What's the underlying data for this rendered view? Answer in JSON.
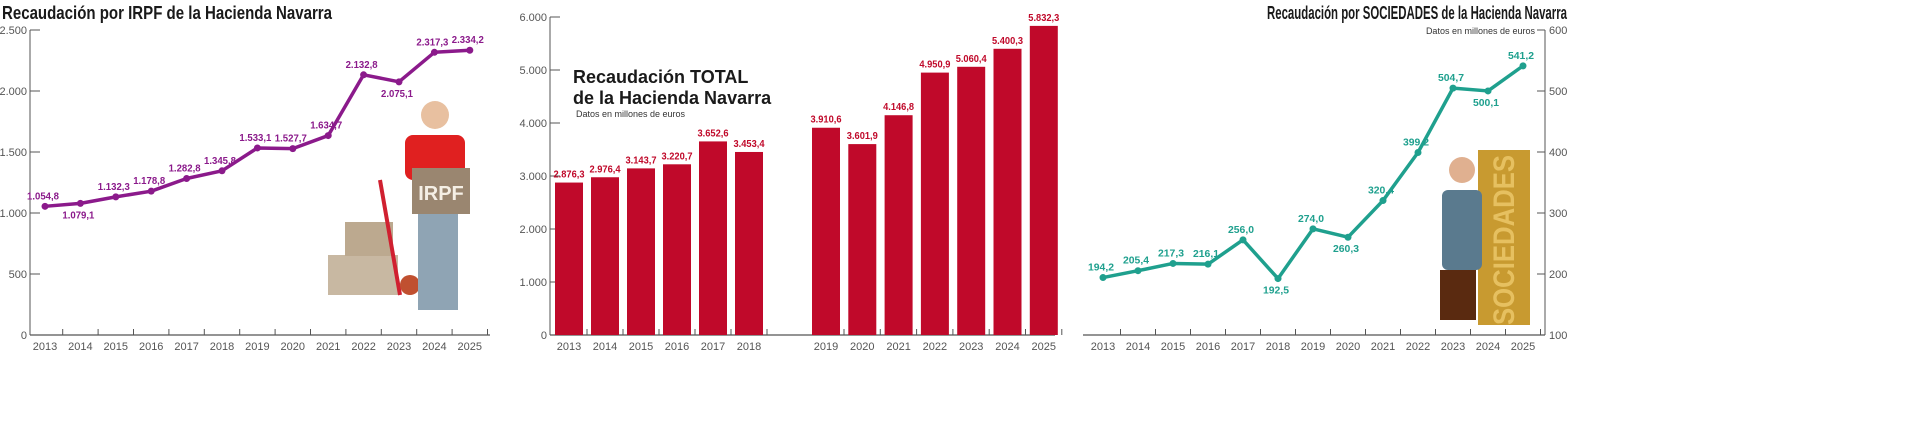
{
  "colors": {
    "irpf": "#8b1a8b",
    "total": "#c0092a",
    "sociedades": "#1fa08e",
    "axis": "#555555"
  },
  "chart_data": [
    {
      "type": "line",
      "title": "Recaudación por IRPF de la Hacienda Navarra",
      "categories": [
        "2013",
        "2014",
        "2015",
        "2016",
        "2017",
        "2018",
        "2019",
        "2020",
        "2021",
        "2022",
        "2023",
        "2024",
        "2025"
      ],
      "values": [
        1054.8,
        1079.1,
        1132.3,
        1178.8,
        1282.8,
        1345.8,
        1533.1,
        1527.7,
        1634.7,
        2132.8,
        2075.1,
        2317.3,
        2334.2
      ],
      "data_labels": [
        "1.054,8",
        "1.079,1",
        "1.132,3",
        "1.178,8",
        "1.282,8",
        "1.345,8",
        "1.533,1",
        "1.527,7",
        "1.634,7",
        "2.132,8",
        "2.075,1",
        "2.317,3",
        "2.334,2"
      ],
      "yticks": [
        0,
        500,
        1000,
        1500,
        2000,
        2500
      ],
      "ytick_labels": [
        "0",
        "500",
        "1.000",
        "1.500",
        "2.000",
        "2.500"
      ],
      "ylim": [
        0,
        2500
      ],
      "y_axis_side": "left",
      "illustration_text": "IRPF"
    },
    {
      "type": "bar",
      "title_lines": [
        "Recaudación TOTAL",
        "de la Hacienda Navarra"
      ],
      "subtitle": "Datos en millones de euros",
      "categories": [
        "2013",
        "2014",
        "2015",
        "2016",
        "2017",
        "2018",
        "2019",
        "2020",
        "2021",
        "2022",
        "2023",
        "2024",
        "2025"
      ],
      "values": [
        2876.3,
        2976.4,
        3143.7,
        3220.7,
        3652.6,
        3453.4,
        3910.6,
        3601.9,
        4146.8,
        4950.9,
        5060.4,
        5400.3,
        5832.3
      ],
      "data_labels": [
        "2.876,3",
        "2.976,4",
        "3.143,7",
        "3.220,7",
        "3.652,6",
        "3.453,4",
        "3.910,6",
        "3.601,9",
        "4.146,8",
        "4.950,9",
        "5.060,4",
        "5.400,3",
        "5.832,3"
      ],
      "yticks": [
        0,
        1000,
        2000,
        3000,
        4000,
        5000,
        6000
      ],
      "ytick_labels": [
        "0",
        "1.000",
        "2.000",
        "3.000",
        "4.000",
        "5.000",
        "6.000"
      ],
      "ylim": [
        0,
        6000
      ],
      "y_axis_side": "left"
    },
    {
      "type": "line",
      "title": "Recaudación por SOCIEDADES de la Hacienda Navarra",
      "subtitle": "Datos en millones de euros",
      "categories": [
        "2013",
        "2014",
        "2015",
        "2016",
        "2017",
        "2018",
        "2019",
        "2020",
        "2021",
        "2022",
        "2023",
        "2024",
        "2025"
      ],
      "values": [
        194.2,
        205.4,
        217.3,
        216.1,
        256.0,
        192.5,
        274.0,
        260.3,
        320.4,
        399.2,
        504.7,
        500.1,
        541.2
      ],
      "data_labels": [
        "194,2",
        "205,4",
        "217,3",
        "216,1",
        "256,0",
        "192,5",
        "274,0",
        "260,3",
        "320,4",
        "399,2",
        "504,7",
        "500,1",
        "541,2"
      ],
      "yticks": [
        100,
        200,
        300,
        400,
        500,
        600
      ],
      "ytick_labels": [
        "100",
        "200",
        "300",
        "400",
        "500",
        "600"
      ],
      "ylim": [
        100,
        600
      ],
      "y_axis_side": "right",
      "illustration_text": "SOCIEDADES"
    }
  ]
}
